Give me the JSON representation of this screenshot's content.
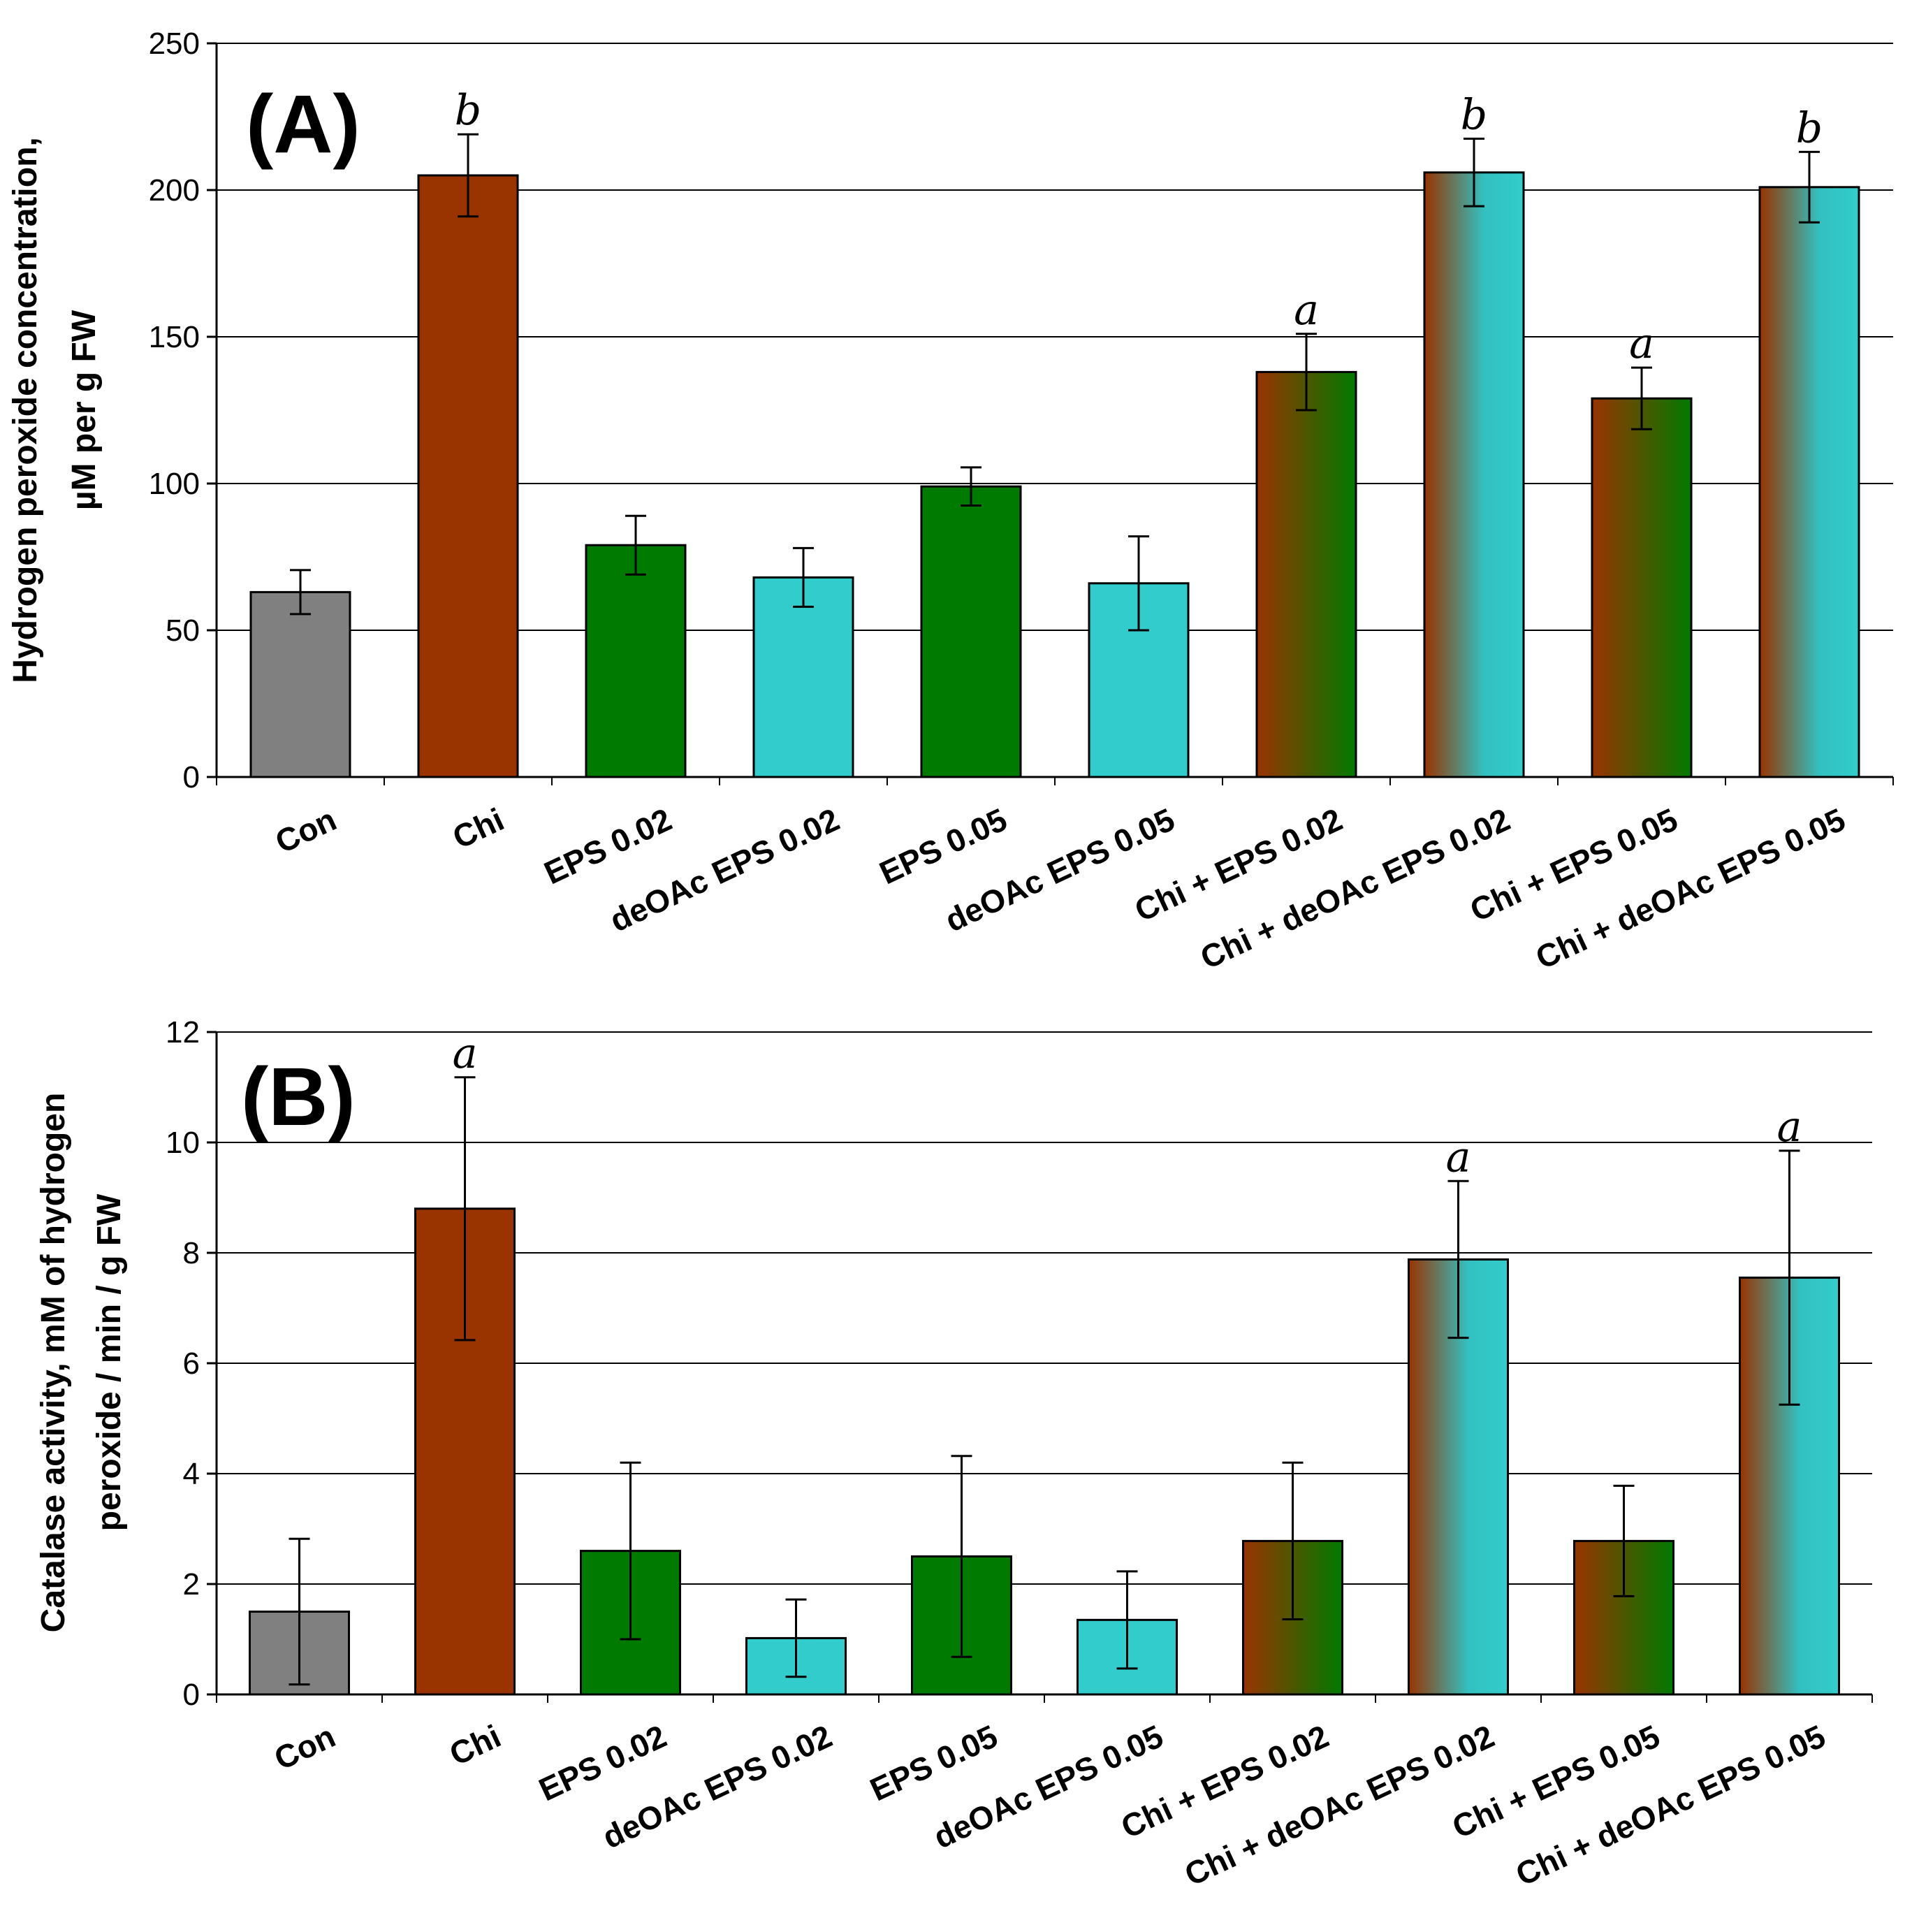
{
  "colors": {
    "Con": "#808080",
    "Chi": "#993300",
    "EPS": "#007a00",
    "deOAc": "#33cccc",
    "axis": "#000000",
    "grid": "#000000"
  },
  "chart_data": [
    {
      "type": "bar",
      "panel": "(A)",
      "title": "",
      "ylabel_lines": [
        "Hydrogen peroxide concentration,",
        "µM per g FW"
      ],
      "xlabel": "",
      "ylim": [
        0,
        250
      ],
      "yticks": [
        0,
        50,
        100,
        150,
        200,
        250
      ],
      "grid": true,
      "categories": [
        "Con",
        "Chi",
        "EPS 0.02",
        "deOAc EPS 0.02",
        "EPS 0.05",
        "deOAc EPS 0.05",
        "Chi + EPS 0.02",
        "Chi + deOAc EPS 0.02",
        "Chi + EPS 0.05",
        "Chi + deOAc EPS 0.05"
      ],
      "values": [
        63,
        205,
        79,
        68,
        99,
        66,
        138,
        206,
        129,
        201
      ],
      "errors": [
        7.5,
        14,
        10,
        10,
        6.5,
        16,
        13,
        11.5,
        10.5,
        12
      ],
      "significance": [
        "",
        "b",
        "",
        "",
        "",
        "",
        "a",
        "b",
        "a",
        "b"
      ],
      "fills": [
        "Con",
        "Chi",
        "EPS",
        "deOAc",
        "EPS",
        "deOAc",
        "Chi-EPS",
        "Chi-deOAc",
        "Chi-EPS",
        "Chi-deOAc"
      ]
    },
    {
      "type": "bar",
      "panel": "(B)",
      "title": "",
      "ylabel_lines": [
        "Catalase activity,  mM of hydrogen",
        "peroxide / min / g FW"
      ],
      "xlabel": "",
      "ylim": [
        0,
        12
      ],
      "yticks": [
        0,
        2,
        4,
        6,
        8,
        10,
        12
      ],
      "grid": true,
      "categories": [
        "Con",
        "Chi",
        "EPS 0.02",
        "deOAc EPS 0.02",
        "EPS 0.05",
        "deOAc EPS 0.05",
        "Chi + EPS 0.02",
        "Chi + deOAc EPS 0.02",
        "Chi + EPS 0.05",
        "Chi + deOAc EPS 0.05"
      ],
      "values": [
        1.5,
        8.8,
        2.6,
        1.02,
        2.5,
        1.35,
        2.78,
        7.88,
        2.78,
        7.55
      ],
      "errors": [
        1.32,
        2.38,
        1.6,
        0.7,
        1.82,
        0.88,
        1.42,
        1.42,
        1.0,
        2.3
      ],
      "significance": [
        "",
        "a",
        "",
        "",
        "",
        "",
        "",
        "a",
        "",
        "a"
      ],
      "fills": [
        "Con",
        "Chi",
        "EPS",
        "deOAc",
        "EPS",
        "deOAc",
        "Chi-EPS",
        "Chi-deOAc",
        "Chi-EPS",
        "Chi-deOAc"
      ]
    }
  ]
}
